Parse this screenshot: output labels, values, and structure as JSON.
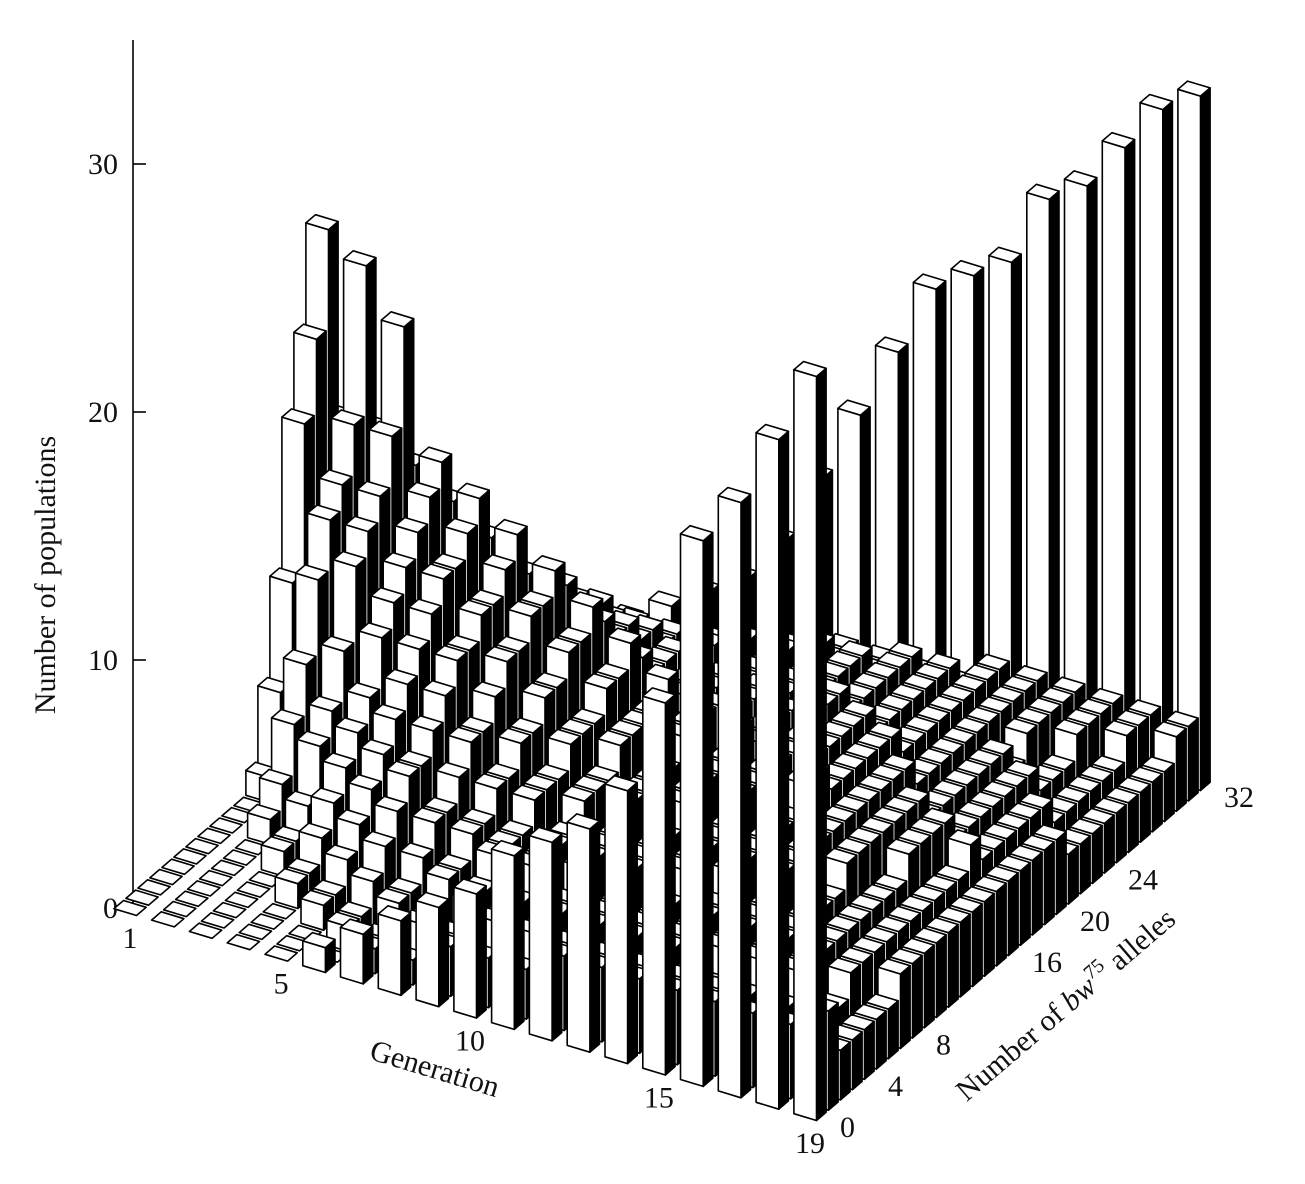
{
  "chart_data": {
    "type": "bar3d",
    "ylabel": "Number of populations",
    "xlabel": "Generation",
    "zlabel_parts": [
      "Number of ",
      "bw",
      "75",
      " alleles"
    ],
    "x": [
      1,
      2,
      3,
      4,
      5,
      6,
      7,
      8,
      9,
      10,
      11,
      12,
      13,
      14,
      15,
      16,
      17,
      18,
      19
    ],
    "xlim": [
      1,
      19
    ],
    "xticks": [
      1,
      5,
      10,
      15,
      19
    ],
    "z": [
      0,
      1,
      2,
      3,
      4,
      5,
      6,
      7,
      8,
      9,
      10,
      11,
      12,
      13,
      14,
      15,
      16,
      17,
      18,
      19,
      20,
      21,
      22,
      23,
      24,
      25,
      26,
      27,
      28,
      29,
      30,
      31,
      32
    ],
    "zlim": [
      0,
      32
    ],
    "zticks": [
      0,
      4,
      8,
      16,
      20,
      24,
      32
    ],
    "ylim": [
      0,
      35
    ],
    "yticks": [
      0,
      10,
      20,
      30
    ],
    "values": [
      [
        0,
        0,
        0,
        0,
        0,
        0,
        0,
        0,
        0,
        0,
        0,
        1,
        4,
        8,
        14,
        17,
        21,
        13,
        10,
        7,
        3,
        2,
        1,
        0,
        0,
        0,
        0,
        0,
        0,
        0,
        0,
        0,
        0
      ],
      [
        0,
        0,
        0,
        0,
        0,
        0,
        0,
        0,
        1,
        2,
        4,
        6,
        9,
        11,
        12,
        14,
        20,
        13,
        9,
        7,
        4,
        3,
        2,
        1,
        0,
        0,
        0,
        0,
        0,
        0,
        0,
        0,
        0
      ],
      [
        0,
        0,
        0,
        0,
        0,
        0,
        1,
        1,
        2,
        4,
        5,
        7,
        10,
        11,
        12,
        14,
        18,
        12,
        9,
        8,
        5,
        3,
        2,
        1,
        1,
        0,
        0,
        0,
        0,
        0,
        0,
        0,
        0
      ],
      [
        0,
        0,
        0,
        0,
        1,
        1,
        2,
        3,
        4,
        5,
        6,
        8,
        9,
        10,
        11,
        12,
        13,
        11,
        8,
        7,
        6,
        4,
        3,
        2,
        1,
        1,
        0,
        0,
        0,
        0,
        0,
        0,
        0
      ],
      [
        0,
        0,
        0,
        1,
        1,
        2,
        3,
        4,
        5,
        6,
        7,
        8,
        9,
        10,
        10,
        11,
        12,
        10,
        9,
        8,
        7,
        5,
        4,
        3,
        2,
        1,
        1,
        0,
        0,
        0,
        0,
        0,
        1
      ],
      [
        1,
        0,
        1,
        1,
        2,
        3,
        4,
        5,
        5,
        6,
        7,
        8,
        8,
        9,
        9,
        10,
        11,
        9,
        8,
        8,
        7,
        6,
        5,
        4,
        3,
        2,
        2,
        1,
        1,
        0,
        0,
        0,
        2
      ],
      [
        2,
        1,
        1,
        2,
        2,
        3,
        4,
        4,
        5,
        6,
        6,
        7,
        8,
        8,
        9,
        9,
        10,
        9,
        8,
        7,
        7,
        6,
        5,
        5,
        4,
        3,
        2,
        2,
        1,
        1,
        1,
        0,
        3
      ],
      [
        3,
        1,
        2,
        2,
        3,
        3,
        4,
        4,
        5,
        5,
        6,
        6,
        7,
        7,
        8,
        8,
        9,
        8,
        7,
        7,
        6,
        6,
        5,
        5,
        4,
        4,
        3,
        3,
        2,
        2,
        1,
        1,
        5
      ],
      [
        4,
        2,
        2,
        3,
        3,
        4,
        4,
        4,
        5,
        5,
        5,
        6,
        6,
        6,
        7,
        7,
        8,
        7,
        6,
        6,
        6,
        5,
        5,
        5,
        4,
        4,
        4,
        3,
        3,
        2,
        2,
        1,
        8
      ],
      [
        5,
        2,
        3,
        3,
        3,
        4,
        4,
        4,
        4,
        5,
        5,
        5,
        6,
        6,
        6,
        6,
        7,
        6,
        6,
        6,
        5,
        5,
        5,
        4,
        4,
        4,
        4,
        3,
        3,
        3,
        2,
        2,
        11
      ],
      [
        7,
        2,
        3,
        3,
        3,
        3,
        4,
        4,
        4,
        4,
        5,
        5,
        5,
        5,
        6,
        6,
        6,
        6,
        5,
        5,
        5,
        5,
        4,
        4,
        4,
        4,
        3,
        3,
        3,
        3,
        2,
        2,
        14
      ],
      [
        8,
        3,
        3,
        3,
        3,
        3,
        3,
        4,
        4,
        4,
        4,
        5,
        5,
        5,
        5,
        5,
        6,
        5,
        5,
        5,
        5,
        4,
        4,
        4,
        4,
        3,
        3,
        3,
        3,
        3,
        3,
        2,
        17
      ],
      [
        9,
        3,
        3,
        3,
        3,
        3,
        3,
        3,
        4,
        4,
        4,
        4,
        4,
        5,
        5,
        5,
        5,
        5,
        5,
        4,
        4,
        4,
        4,
        4,
        3,
        3,
        3,
        3,
        3,
        3,
        3,
        2,
        18
      ],
      [
        11,
        3,
        3,
        3,
        3,
        3,
        3,
        3,
        3,
        4,
        4,
        4,
        4,
        4,
        4,
        5,
        5,
        4,
        4,
        4,
        4,
        4,
        4,
        3,
        3,
        3,
        3,
        3,
        3,
        3,
        3,
        3,
        19
      ],
      [
        15,
        3,
        3,
        3,
        2,
        3,
        3,
        3,
        3,
        3,
        4,
        4,
        4,
        4,
        4,
        4,
        4,
        4,
        4,
        4,
        4,
        3,
        3,
        3,
        3,
        3,
        3,
        3,
        3,
        3,
        3,
        3,
        22
      ],
      [
        22,
        3,
        3,
        2,
        2,
        3,
        3,
        3,
        3,
        3,
        3,
        3,
        4,
        4,
        4,
        4,
        4,
        4,
        4,
        3,
        3,
        3,
        3,
        3,
        3,
        3,
        2,
        3,
        3,
        3,
        3,
        3,
        23
      ],
      [
        24,
        3,
        2,
        2,
        2,
        3,
        3,
        3,
        3,
        3,
        3,
        3,
        3,
        3,
        4,
        4,
        4,
        4,
        3,
        3,
        3,
        3,
        3,
        3,
        3,
        2,
        2,
        2,
        3,
        3,
        3,
        3,
        25
      ],
      [
        27,
        3,
        2,
        2,
        2,
        2,
        3,
        3,
        3,
        3,
        3,
        3,
        3,
        3,
        3,
        3,
        4,
        3,
        3,
        3,
        3,
        3,
        3,
        2,
        2,
        2,
        2,
        2,
        2,
        3,
        3,
        3,
        27
      ],
      [
        30,
        4,
        2,
        2,
        2,
        2,
        2,
        3,
        3,
        3,
        3,
        3,
        3,
        3,
        3,
        3,
        3,
        3,
        3,
        3,
        3,
        2,
        2,
        2,
        2,
        2,
        2,
        2,
        2,
        2,
        3,
        3,
        28
      ]
    ]
  }
}
